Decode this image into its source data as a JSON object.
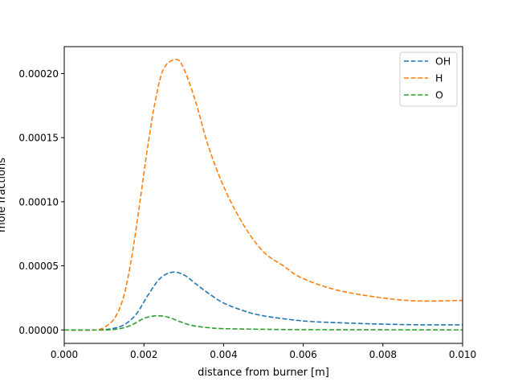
{
  "chart_data": {
    "type": "line",
    "title": "",
    "xlabel": "distance from burner [m]",
    "ylabel": "mole fractions",
    "xlim": [
      0,
      0.01
    ],
    "ylim": [
      -1.05e-05,
      0.000221
    ],
    "x_ticks": [
      0,
      0.002,
      0.004,
      0.006,
      0.008,
      0.01
    ],
    "x_tick_labels": [
      "0.000",
      "0.002",
      "0.004",
      "0.006",
      "0.008",
      "0.010"
    ],
    "y_ticks": [
      0,
      5e-05,
      0.0001,
      0.00015,
      0.0002
    ],
    "y_tick_labels": [
      "0.00000",
      "0.00005",
      "0.00010",
      "0.00015",
      "0.00020"
    ],
    "grid": false,
    "legend_position": "top-right",
    "series": [
      {
        "name": "OH",
        "color": "#1f77b4",
        "style": "dashed",
        "points": [
          [
            0,
            0
          ],
          [
            0.0008,
            0
          ],
          [
            0.0012,
            1e-06
          ],
          [
            0.0015,
            4e-06
          ],
          [
            0.0018,
            1.2e-05
          ],
          [
            0.0021,
            2.7e-05
          ],
          [
            0.0024,
            4e-05
          ],
          [
            0.0027,
            4.5e-05
          ],
          [
            0.003,
            4.3e-05
          ],
          [
            0.0033,
            3.6e-05
          ],
          [
            0.0036,
            2.9e-05
          ],
          [
            0.004,
            2.1e-05
          ],
          [
            0.0045,
            1.5e-05
          ],
          [
            0.005,
            1.1e-05
          ],
          [
            0.006,
            7e-06
          ],
          [
            0.007,
            5.5e-06
          ],
          [
            0.008,
            4.5e-06
          ],
          [
            0.009,
            4e-06
          ],
          [
            0.01,
            4e-06
          ]
        ]
      },
      {
        "name": "H",
        "color": "#ff7f0e",
        "style": "dashed",
        "points": [
          [
            0,
            0
          ],
          [
            0.0008,
            0
          ],
          [
            0.0011,
            4e-06
          ],
          [
            0.0013,
            1.1e-05
          ],
          [
            0.0015,
            2.7e-05
          ],
          [
            0.0017,
            5.8e-05
          ],
          [
            0.0019,
            0.0001
          ],
          [
            0.0021,
            0.000144
          ],
          [
            0.0023,
            0.000181
          ],
          [
            0.0025,
            0.000204
          ],
          [
            0.0028,
            0.000211
          ],
          [
            0.003,
            0.000204
          ],
          [
            0.0033,
            0.000178
          ],
          [
            0.0036,
            0.000145
          ],
          [
            0.004,
            0.000112
          ],
          [
            0.0045,
            8.2e-05
          ],
          [
            0.005,
            6.1e-05
          ],
          [
            0.0055,
            5e-05
          ],
          [
            0.006,
            4e-05
          ],
          [
            0.007,
            3e-05
          ],
          [
            0.0086,
            2.3e-05
          ],
          [
            0.01,
            2.3e-05
          ]
        ]
      },
      {
        "name": "O",
        "color": "#2ca02c",
        "style": "dashed",
        "points": [
          [
            0,
            0
          ],
          [
            0.001,
            0
          ],
          [
            0.0014,
            1e-06
          ],
          [
            0.0017,
            4e-06
          ],
          [
            0.002,
            9e-06
          ],
          [
            0.0023,
            1.1e-05
          ],
          [
            0.0026,
            1e-05
          ],
          [
            0.0029,
            6.5e-06
          ],
          [
            0.0032,
            3.5e-06
          ],
          [
            0.0036,
            1.8e-06
          ],
          [
            0.004,
            1e-06
          ],
          [
            0.005,
            5e-07
          ],
          [
            0.006,
            2e-07
          ],
          [
            0.008,
            1e-07
          ],
          [
            0.01,
            0
          ]
        ]
      }
    ]
  },
  "colors": {
    "axes": "#000000",
    "legend_border": "#cccccc",
    "background": "#ffffff"
  }
}
